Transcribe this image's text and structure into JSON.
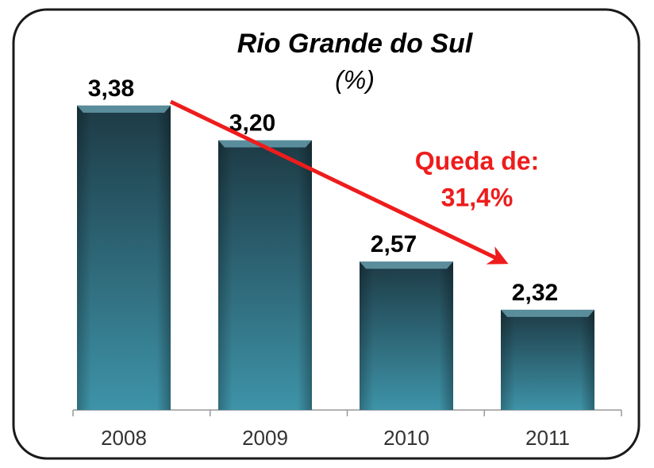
{
  "chart_data": {
    "type": "bar",
    "title": "Rio Grande do Sul",
    "subtitle": "(%)",
    "annotations": [
      "Queda de:",
      "31,4%"
    ],
    "categories": [
      "2008",
      "2009",
      "2010",
      "2011"
    ],
    "values": [
      3.38,
      3.2,
      2.57,
      2.32
    ],
    "value_labels": [
      "3,38",
      "3,20",
      "2,57",
      "2,32"
    ],
    "ylim": [
      1.8,
      3.8
    ],
    "color": "#2f6b7b"
  }
}
